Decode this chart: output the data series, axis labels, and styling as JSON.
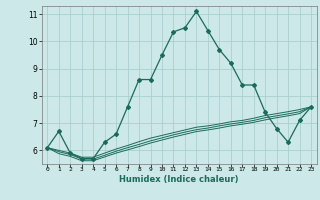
{
  "xlabel": "Humidex (Indice chaleur)",
  "background_color": "#cce8e8",
  "grid_color": "#aacfcf",
  "line_color": "#1a6b5a",
  "xlim": [
    -0.5,
    23.5
  ],
  "ylim": [
    5.5,
    11.3
  ],
  "xticks": [
    0,
    1,
    2,
    3,
    4,
    5,
    6,
    7,
    8,
    9,
    10,
    11,
    12,
    13,
    14,
    15,
    16,
    17,
    18,
    19,
    20,
    21,
    22,
    23
  ],
  "yticks": [
    6,
    7,
    8,
    9,
    10,
    11
  ],
  "line1_x": [
    0,
    1,
    2,
    3,
    4,
    5,
    6,
    7,
    8,
    9,
    10,
    11,
    12,
    13,
    14,
    15,
    16,
    17,
    18,
    19,
    20,
    21,
    22,
    23
  ],
  "line1_y": [
    6.1,
    6.7,
    5.9,
    5.7,
    5.7,
    6.3,
    6.6,
    7.6,
    8.6,
    8.6,
    9.5,
    10.35,
    10.5,
    11.1,
    10.4,
    9.7,
    9.2,
    8.4,
    8.4,
    7.4,
    6.8,
    6.3,
    7.1,
    7.6
  ],
  "line2_x": [
    0,
    1,
    2,
    3,
    4,
    5,
    6,
    7,
    8,
    9,
    10,
    11,
    12,
    13,
    14,
    15,
    16,
    17,
    18,
    19,
    20,
    21,
    22,
    23
  ],
  "line2_y": [
    6.1,
    6.0,
    5.9,
    5.75,
    5.75,
    5.9,
    6.05,
    6.18,
    6.32,
    6.45,
    6.55,
    6.65,
    6.75,
    6.85,
    6.9,
    6.97,
    7.05,
    7.1,
    7.18,
    7.28,
    7.35,
    7.42,
    7.5,
    7.6
  ],
  "line3_x": [
    0,
    1,
    2,
    3,
    4,
    5,
    6,
    7,
    8,
    9,
    10,
    11,
    12,
    13,
    14,
    15,
    16,
    17,
    18,
    19,
    20,
    21,
    22,
    23
  ],
  "line3_y": [
    6.1,
    5.95,
    5.85,
    5.68,
    5.68,
    5.82,
    5.97,
    6.1,
    6.22,
    6.35,
    6.46,
    6.57,
    6.67,
    6.76,
    6.82,
    6.9,
    6.97,
    7.03,
    7.1,
    7.2,
    7.27,
    7.34,
    7.42,
    7.6
  ],
  "line4_x": [
    0,
    1,
    2,
    3,
    4,
    5,
    6,
    7,
    8,
    9,
    10,
    11,
    12,
    13,
    14,
    15,
    16,
    17,
    18,
    19,
    20,
    21,
    22,
    23
  ],
  "line4_y": [
    6.1,
    5.88,
    5.78,
    5.62,
    5.62,
    5.76,
    5.9,
    6.02,
    6.14,
    6.27,
    6.38,
    6.49,
    6.59,
    6.69,
    6.75,
    6.82,
    6.9,
    6.96,
    7.03,
    7.12,
    7.2,
    7.27,
    7.35,
    7.6
  ]
}
